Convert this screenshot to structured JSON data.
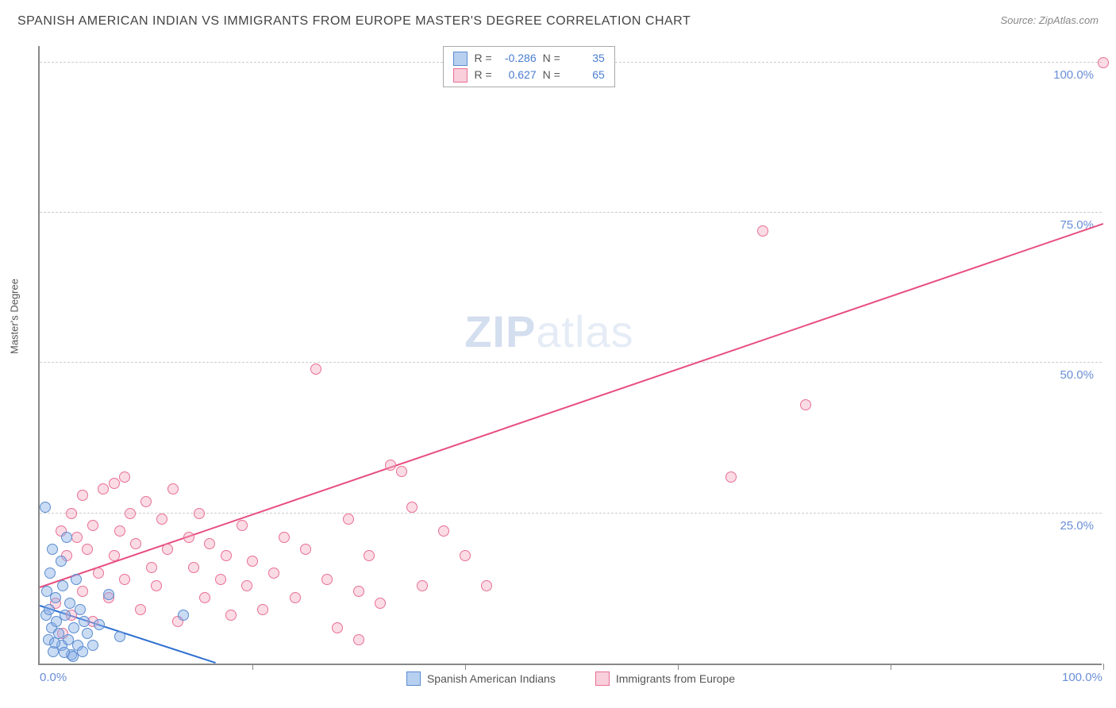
{
  "header": {
    "title": "SPANISH AMERICAN INDIAN VS IMMIGRANTS FROM EUROPE MASTER'S DEGREE CORRELATION CHART",
    "source": "Source: ZipAtlas.com"
  },
  "watermark": {
    "left": "ZIP",
    "right": "atlas"
  },
  "chart": {
    "type": "scatter",
    "ylabel": "Master's Degree",
    "xlim": [
      0,
      100
    ],
    "ylim": [
      0,
      103
    ],
    "xticks": [
      0,
      20,
      40,
      60,
      80,
      100
    ],
    "yticks_grid": [
      25,
      50,
      75,
      100
    ],
    "xtick_labels": {
      "0": "0.0%",
      "100": "100.0%"
    },
    "ytick_labels": {
      "25": "25.0%",
      "50": "50.0%",
      "75": "75.0%",
      "100": "100.0%"
    },
    "grid_color": "#cccccc",
    "axis_color": "#888888",
    "background_color": "#ffffff",
    "series": [
      {
        "name": "Spanish American Indians",
        "color_fill": "rgba(137,176,230,0.45)",
        "color_stroke": "#5a8cd0",
        "marker_radius": 7,
        "correlation_r": "-0.286",
        "correlation_n": "35",
        "trend": {
          "x1": 0,
          "y1": 9.5,
          "x2": 16.5,
          "y2": 0,
          "color": "#2f6fd0",
          "width": 2
        },
        "points": [
          [
            0.5,
            26
          ],
          [
            0.6,
            8
          ],
          [
            0.7,
            12
          ],
          [
            0.8,
            4
          ],
          [
            0.9,
            9
          ],
          [
            1.0,
            15
          ],
          [
            1.1,
            6
          ],
          [
            1.2,
            19
          ],
          [
            1.3,
            2
          ],
          [
            1.5,
            11
          ],
          [
            1.6,
            7
          ],
          [
            1.8,
            5
          ],
          [
            2.0,
            17
          ],
          [
            2.1,
            3
          ],
          [
            2.2,
            13
          ],
          [
            2.4,
            8
          ],
          [
            2.5,
            21
          ],
          [
            2.7,
            4
          ],
          [
            2.8,
            10
          ],
          [
            3.0,
            1.5
          ],
          [
            3.2,
            6
          ],
          [
            3.4,
            14
          ],
          [
            3.6,
            3
          ],
          [
            3.8,
            9
          ],
          [
            4.0,
            2
          ],
          [
            4.2,
            7
          ],
          [
            4.5,
            5
          ],
          [
            5.0,
            3
          ],
          [
            5.6,
            6.5
          ],
          [
            6.5,
            11.5
          ],
          [
            7.5,
            4.5
          ],
          [
            3.1,
            1.2
          ],
          [
            2.3,
            1.8
          ],
          [
            1.4,
            3.5
          ],
          [
            13.5,
            8
          ]
        ]
      },
      {
        "name": "Immigrants from Europe",
        "color_fill": "rgba(244,168,190,0.4)",
        "color_stroke": "#e86f95",
        "marker_radius": 7,
        "correlation_r": "0.627",
        "correlation_n": "65",
        "trend": {
          "x1": 0,
          "y1": 12.5,
          "x2": 100,
          "y2": 73,
          "color": "#e84e7f",
          "width": 2
        },
        "points": [
          [
            1.5,
            10
          ],
          [
            2,
            22
          ],
          [
            2.2,
            5
          ],
          [
            2.5,
            18
          ],
          [
            3,
            25
          ],
          [
            3,
            8
          ],
          [
            3.5,
            21
          ],
          [
            4,
            28
          ],
          [
            4,
            12
          ],
          [
            4.5,
            19
          ],
          [
            5,
            23
          ],
          [
            5,
            7
          ],
          [
            5.5,
            15
          ],
          [
            6,
            29
          ],
          [
            6.5,
            11
          ],
          [
            7,
            30
          ],
          [
            7,
            18
          ],
          [
            7.5,
            22
          ],
          [
            8,
            31
          ],
          [
            8,
            14
          ],
          [
            8.5,
            25
          ],
          [
            9,
            20
          ],
          [
            9.5,
            9
          ],
          [
            10,
            27
          ],
          [
            10.5,
            16
          ],
          [
            11,
            13
          ],
          [
            11.5,
            24
          ],
          [
            12,
            19
          ],
          [
            12.5,
            29
          ],
          [
            13,
            7
          ],
          [
            14,
            21
          ],
          [
            14.5,
            16
          ],
          [
            15,
            25
          ],
          [
            15.5,
            11
          ],
          [
            16,
            20
          ],
          [
            17,
            14
          ],
          [
            17.5,
            18
          ],
          [
            18,
            8
          ],
          [
            19,
            23
          ],
          [
            19.5,
            13
          ],
          [
            20,
            17
          ],
          [
            21,
            9
          ],
          [
            22,
            15
          ],
          [
            23,
            21
          ],
          [
            24,
            11
          ],
          [
            25,
            19
          ],
          [
            26,
            49
          ],
          [
            27,
            14
          ],
          [
            28,
            6
          ],
          [
            29,
            24
          ],
          [
            30,
            12
          ],
          [
            30,
            4
          ],
          [
            31,
            18
          ],
          [
            32,
            10
          ],
          [
            33,
            33
          ],
          [
            35,
            26
          ],
          [
            36,
            13
          ],
          [
            38,
            22
          ],
          [
            40,
            18
          ],
          [
            42,
            13
          ],
          [
            65,
            31
          ],
          [
            68,
            72
          ],
          [
            72,
            43
          ],
          [
            100,
            100
          ],
          [
            34,
            32
          ]
        ]
      }
    ],
    "legend_corr": {
      "r_label": "R =",
      "n_label": "N ="
    },
    "bottom_legend": [
      {
        "label": "Spanish American Indians",
        "swatch": "blue"
      },
      {
        "label": "Immigrants from Europe",
        "swatch": "pink"
      }
    ]
  }
}
